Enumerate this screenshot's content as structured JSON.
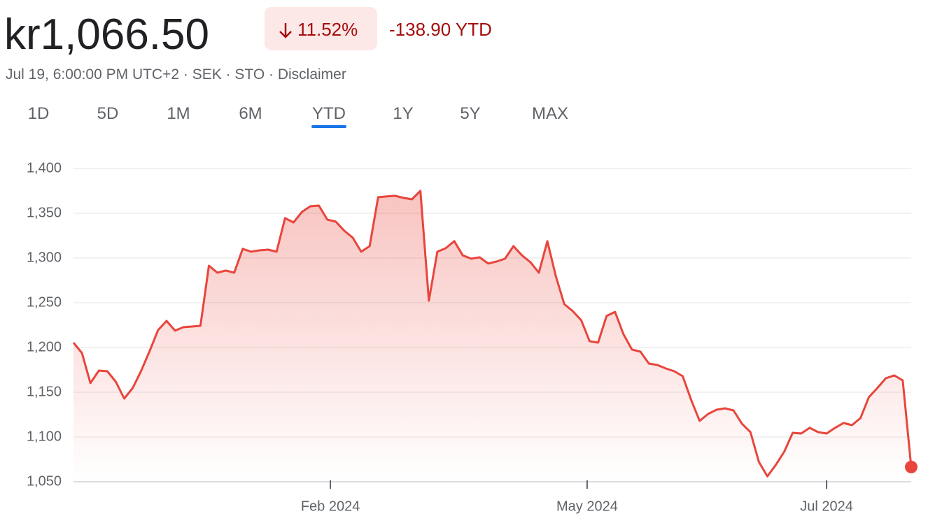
{
  "header": {
    "price": "kr1,066.50",
    "change_percent": "11.52%",
    "change_ytd": "-138.90 YTD",
    "subtitle": "Jul 19, 6:00:00 PM UTC+2 · SEK · STO · Disclaimer"
  },
  "tabs": {
    "items": [
      "1D",
      "5D",
      "1M",
      "6M",
      "YTD",
      "1Y",
      "5Y",
      "MAX"
    ],
    "selected": "YTD"
  },
  "chart_data": {
    "type": "line",
    "color": "#e8453c",
    "values": [
      1205.5,
      1193.8,
      1160.2,
      1174.2,
      1173.4,
      1161.7,
      1143,
      1154.7,
      1174,
      1196,
      1219.5,
      1229.7,
      1218.8,
      1222.7,
      1223.4,
      1224.2,
      1291.4,
      1283.6,
      1286,
      1283.6,
      1310.2,
      1307,
      1308.6,
      1309.4,
      1307,
      1344.5,
      1339.8,
      1351.6,
      1357.8,
      1358.6,
      1342.9,
      1340.6,
      1330.5,
      1322.7,
      1307,
      1313.3,
      1368,
      1368.8,
      1369.5,
      1367.2,
      1365.6,
      1375,
      1252.3,
      1307,
      1311,
      1318.8,
      1303,
      1299.2,
      1300.8,
      1293.8,
      1296.1,
      1299.2,
      1313.3,
      1303,
      1295.3,
      1283.6,
      1318.8,
      1279.7,
      1248.4,
      1240.6,
      1230.5,
      1207,
      1205.5,
      1235.2,
      1239.8,
      1214.8,
      1197.7,
      1195.3,
      1182,
      1180.5,
      1176.6,
      1173.4,
      1168,
      1141.4,
      1118,
      1125.8,
      1130.5,
      1132,
      1129.7,
      1114.8,
      1105.5,
      1072,
      1056,
      1068.8,
      1083.6,
      1104.7,
      1103.9,
      1110.2,
      1105.5,
      1103.9,
      1110.2,
      1115.6,
      1113.3,
      1121.1,
      1144.5,
      1154.7,
      1165.6,
      1168.8,
      1163.3,
      1066.5
    ],
    "xlim": [
      0,
      99
    ],
    "xticks": [
      {
        "value": 30.36,
        "label": "Feb 2024"
      },
      {
        "value": 60.7,
        "label": "May 2024"
      },
      {
        "value": 89,
        "label": "Jul 2024"
      }
    ],
    "ylim": [
      1050,
      1400
    ],
    "yticks": [
      {
        "value": 1050,
        "label": "1,050"
      },
      {
        "value": 1100,
        "label": "1,100"
      },
      {
        "value": 1150,
        "label": "1,150"
      },
      {
        "value": 1200,
        "label": "1,200"
      },
      {
        "value": 1250,
        "label": "1,250"
      },
      {
        "value": 1300,
        "label": "1,300"
      },
      {
        "value": 1350,
        "label": "1,350"
      },
      {
        "value": 1400,
        "label": "1,400"
      }
    ],
    "grid": true
  }
}
